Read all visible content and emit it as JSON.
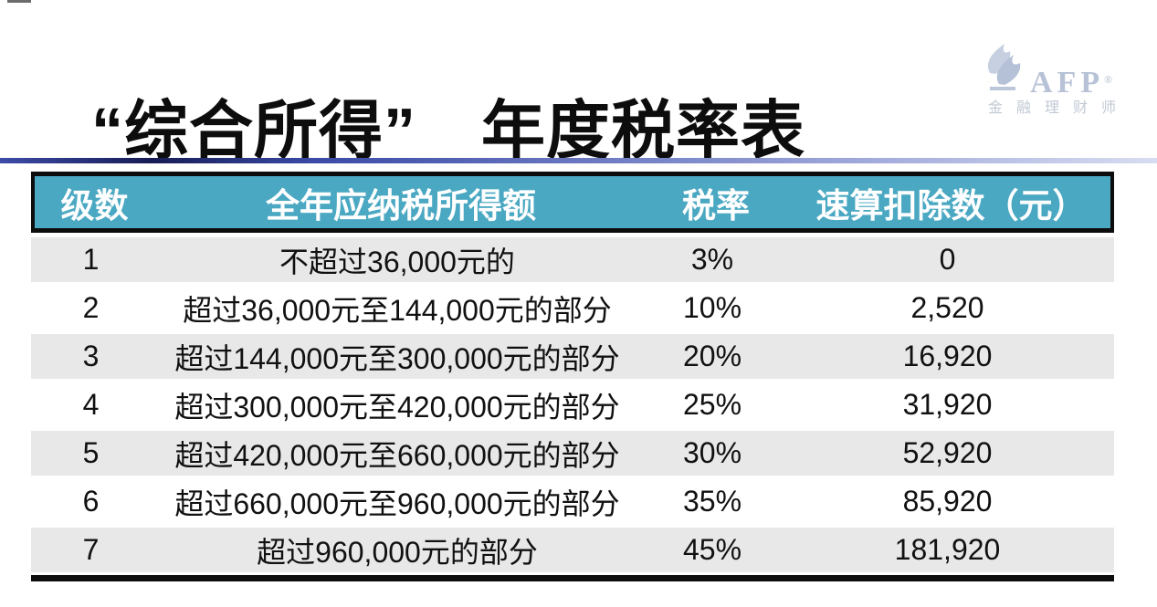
{
  "page": {
    "title": "“综合所得”　年度税率表"
  },
  "logo": {
    "brand": "AFP",
    "registered": "®",
    "subtitle": "金融理财师",
    "color": "#b7c2d6"
  },
  "divider": {
    "color_left": "#171C55",
    "color_right": "#D9DDF1"
  },
  "table": {
    "header_bg": "#4AA8C2",
    "stripe_bg": "#E8E8E8",
    "headers": [
      "级数",
      "全年应纳税所得额",
      "税率",
      "速算扣除数（元）"
    ],
    "rows": [
      {
        "level": "1",
        "income": "不超过36,000元的",
        "rate": "3%",
        "deduction": "0"
      },
      {
        "level": "2",
        "income": "超过36,000元至144,000元的部分",
        "rate": "10%",
        "deduction": "2,520"
      },
      {
        "level": "3",
        "income": "超过144,000元至300,000元的部分",
        "rate": "20%",
        "deduction": "16,920"
      },
      {
        "level": "4",
        "income": "超过300,000元至420,000元的部分",
        "rate": "25%",
        "deduction": "31,920"
      },
      {
        "level": "5",
        "income": "超过420,000元至660,000元的部分",
        "rate": "30%",
        "deduction": "52,920"
      },
      {
        "level": "6",
        "income": "超过660,000元至960,000元的部分",
        "rate": "35%",
        "deduction": "85,920"
      },
      {
        "level": "7",
        "income": "超过960,000元的部分",
        "rate": "45%",
        "deduction": "181,920"
      }
    ]
  }
}
